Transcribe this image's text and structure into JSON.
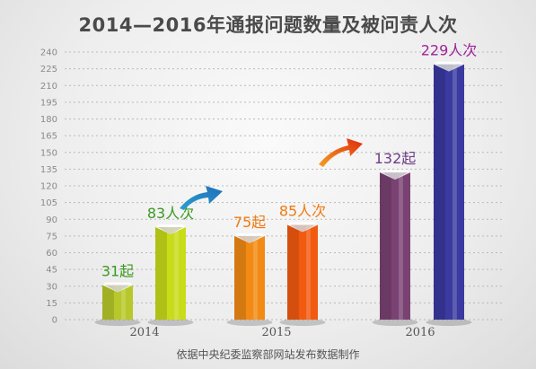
{
  "title": "2014—2016年通报问题数量及被问责人次",
  "source": "依据中央纪委监察部网站发布数据制作",
  "chart_data": {
    "type": "bar",
    "categories": [
      "2014",
      "2015",
      "2016"
    ],
    "ylim": [
      0,
      240
    ],
    "yticks": [
      0,
      15,
      30,
      45,
      60,
      75,
      90,
      105,
      120,
      135,
      150,
      165,
      180,
      195,
      210,
      225,
      240
    ],
    "grid": true,
    "series": [
      {
        "values": [
          31,
          75,
          132
        ],
        "labels": [
          "31起",
          "75起",
          "132起"
        ]
      },
      {
        "values": [
          83,
          85,
          229
        ],
        "labels": [
          "83人次",
          "85人次",
          "229人次"
        ]
      }
    ],
    "label_colors": [
      [
        "#3a9a22",
        "#3a9a22"
      ],
      [
        "#f07a10",
        "#f07a10"
      ],
      [
        "#6c3d88",
        "#a0229a"
      ]
    ],
    "colors": [
      [
        "#b8c82a",
        "#c8dc1a"
      ],
      [
        "#f28a14",
        "#f25a10"
      ],
      [
        "#7a4272",
        "#3a3aa0"
      ]
    ]
  }
}
